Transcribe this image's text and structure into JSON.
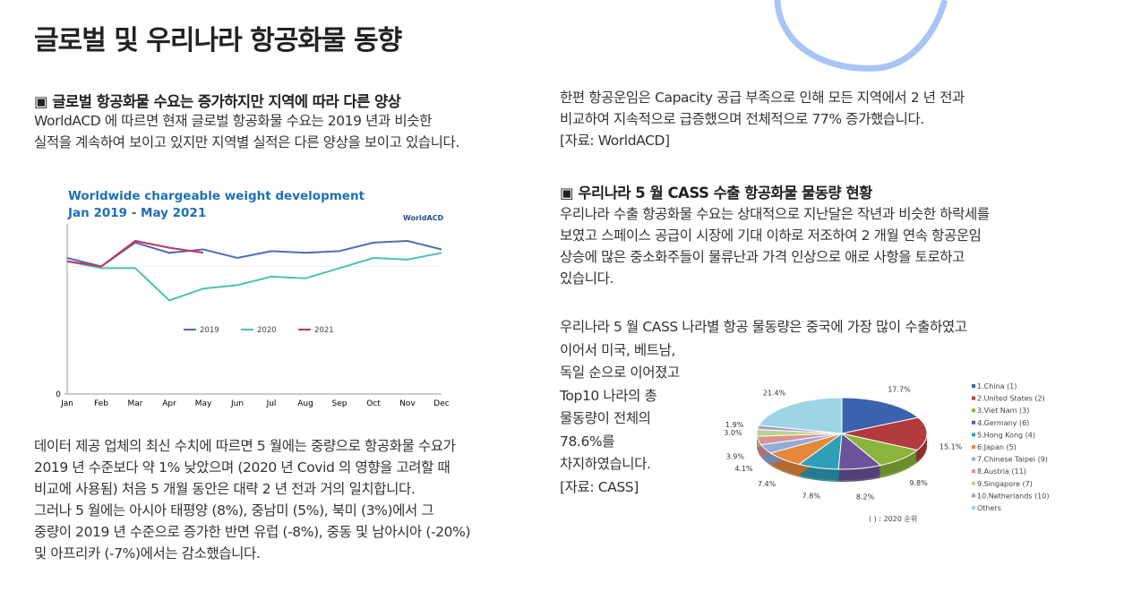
{
  "title": "글로벌 및 우리나라 항공화물 동향",
  "left": {
    "heading": "▣ 글로벌 항공화물 수요는 증가하지만 지역에 따라 다른 양상",
    "intro": [
      "WorldACD 에 따르면 현재 글로벌 항공화물 수요는 2019 년과 비슷한",
      "실적을 계속하여 보이고 있지만 지역별 실적은 다른 양상을 보이고 있습니다."
    ],
    "body": [
      "데이터 제공 업체의 최신 수치에 따르면 5 월에는 중량으로 항공화물 수요가",
      "2019 년 수준보다 약 1% 낮았으며 (2020 년 Covid 의 영향을 고려할 때",
      "비교에 사용됨) 처음 5 개월 동안은 대략 2 년 전과 거의 일치합니다.",
      "그러나 5 월에는 아시아 태평양 (8%), 중남미 (5%), 북미 (3%)에서 그",
      "중량이 2019 년 수준으로 증가한 반면 유럽 (-8%), 중동 및 남아시아 (-20%)",
      "및 아프리카 (-7%)에서는 감소했습니다."
    ]
  },
  "right": {
    "intro": [
      "한편 항공운임은 Capacity 공급 부족으로 인해 모든 지역에서 2 년 전과",
      "비교하여 지속적으로 급증했으며 전체적으로 77% 증가했습니다.",
      "[자료: WorldACD]"
    ],
    "heading": "▣ 우리나라 5 월 CASS 수출 항공화물 물동량 현황",
    "para1": [
      "우리나라 수출 항공화물 수요는 상대적으로 지난달은 작년과 비슷한 하락세를",
      "보였고 스페이스 공급이 시장에 기대 이하로 저조하여 2 개월 연속 항공운임",
      "상승에 많은 중소화주들이 물류난과 가격 인상으로 애로 사항을 토로하고",
      "있습니다."
    ],
    "para2": [
      "우리나라 5 월 CASS 나라별 항공 물동량은 중국에 가장 많이 수출하였고",
      "이어서 미국, 베트남,",
      "독일 순으로 이어졌고",
      "Top10 나라의 총",
      "물동량이 전체의",
      "78.6%를",
      "차지하였습니다.",
      "[자료: CASS]"
    ]
  },
  "chart_data": [
    {
      "type": "line",
      "title": "Worldwide chargeable weight development",
      "subtitle": "Jan 2019 - May 2021",
      "source": "WorldACD",
      "categories": [
        "Jan",
        "Feb",
        "Mar",
        "Apr",
        "May",
        "Jun",
        "Jul",
        "Aug",
        "Sep",
        "Oct",
        "Nov",
        "Dec"
      ],
      "ylim": [
        0,
        100
      ],
      "yticks": [
        0
      ],
      "series": [
        {
          "name": "2019",
          "color": "#4a6fb5",
          "values": [
            80,
            75,
            89,
            83,
            85,
            80,
            84,
            83,
            84,
            89,
            90,
            85
          ]
        },
        {
          "name": "2020",
          "color": "#4cc2b0",
          "values": [
            78,
            74,
            74,
            55,
            62,
            64,
            69,
            68,
            74,
            80,
            79,
            83
          ]
        },
        {
          "name": "2021",
          "color": "#c8325a",
          "values": [
            78,
            75,
            90,
            86,
            83,
            null,
            null,
            null,
            null,
            null,
            null,
            null
          ]
        }
      ]
    },
    {
      "type": "pie",
      "note": "( ) : 2020 순위",
      "categories": [
        "1.China (1)",
        "2.United States (2)",
        "3.Viet Nam (3)",
        "4.Germany (6)",
        "5.Hong Kong (4)",
        "6.Japan (5)",
        "7.Chinese Taipei (9)",
        "8.Austria (11)",
        "9.Singapore (7)",
        "10.Netherlands (10)",
        "Others"
      ],
      "values": [
        17.7,
        15.1,
        9.8,
        8.2,
        7.8,
        7.4,
        4.1,
        3.9,
        3.0,
        1.9,
        21.4
      ],
      "value_labels": [
        "17.7%",
        "15.1%",
        "9.8%",
        "8.2%",
        "7.8%",
        "7.4%",
        "4.1%",
        "3.9%",
        "3.0%",
        "1.9%",
        "21.4%"
      ],
      "colors": [
        "#3a62ad",
        "#b23b3b",
        "#8ab43c",
        "#6b5299",
        "#2f9fb8",
        "#e4883b",
        "#93abd9",
        "#d99292",
        "#b9d38d",
        "#a99cc9",
        "#9ed5e2"
      ]
    }
  ]
}
